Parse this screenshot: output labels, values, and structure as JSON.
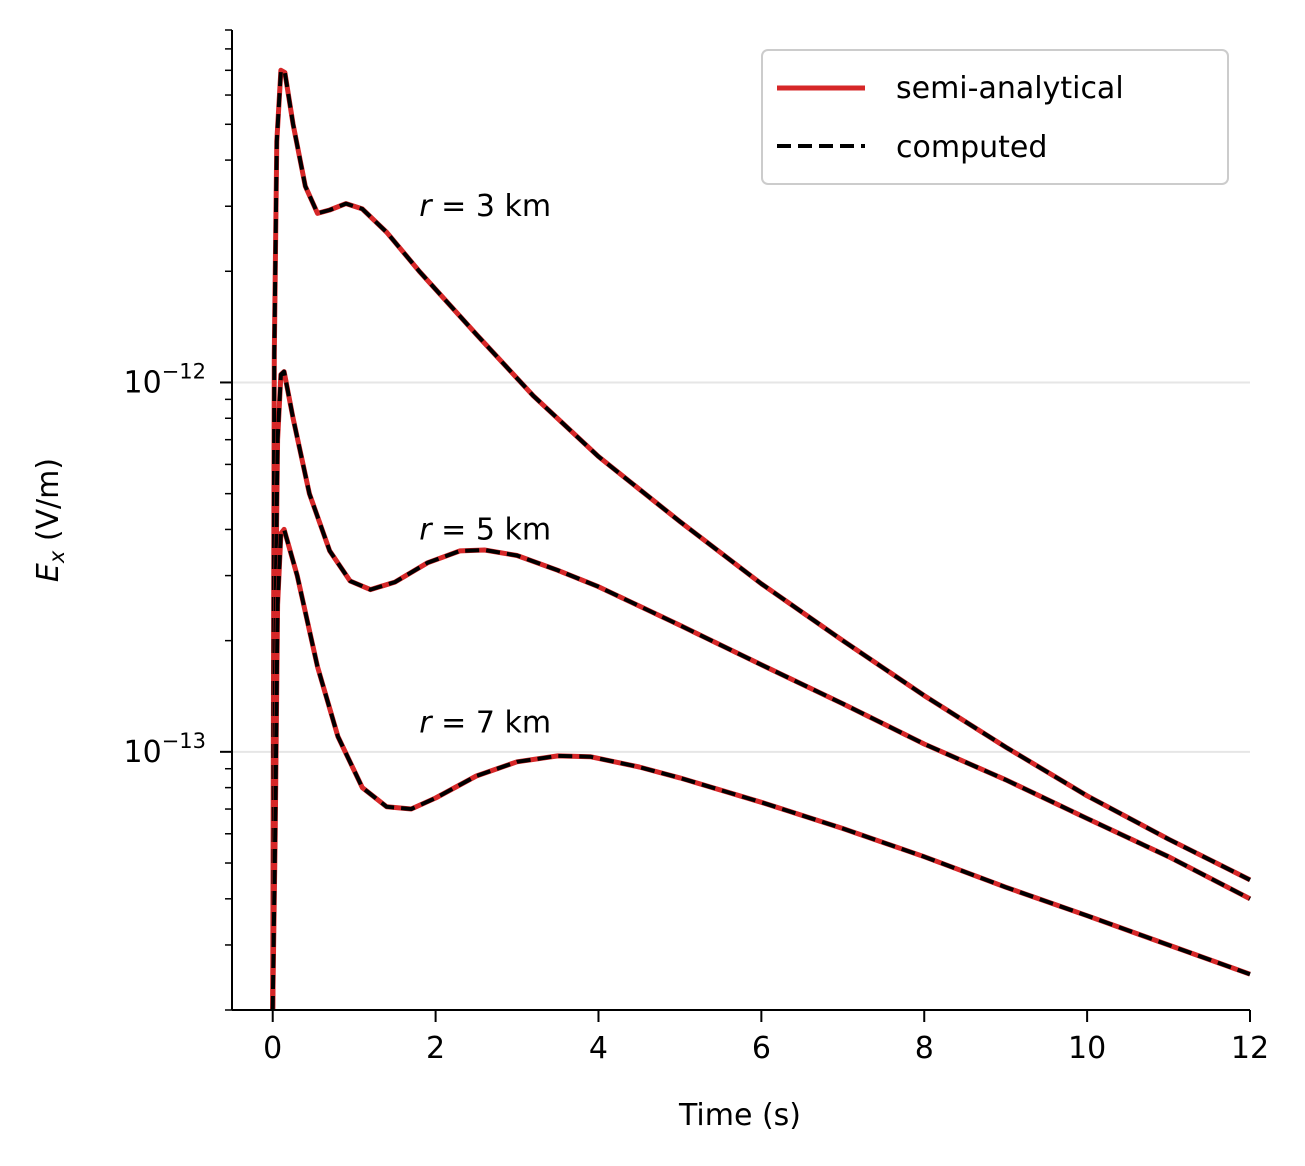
{
  "chart_data": {
    "type": "line",
    "xlabel": "Time (s)",
    "ylabel": "E_x (V/m)",
    "ylabel_main": "E",
    "ylabel_sub": "x",
    "ylabel_unit": " (V/m)",
    "xlim": [
      -0.5,
      12
    ],
    "ylim": [
      2e-14,
      9e-12
    ],
    "yscale": "log",
    "xticks": [
      0,
      2,
      4,
      6,
      8,
      10,
      12
    ],
    "xtick_labels": [
      "0",
      "2",
      "4",
      "6",
      "8",
      "10",
      "12"
    ],
    "yticks_major": [
      {
        "value": 1e-12,
        "base": "10",
        "exp": "−12"
      },
      {
        "value": 1e-13,
        "base": "10",
        "exp": "−13"
      }
    ],
    "grid": "horizontal major lines",
    "legend_position": "top-right",
    "legend": [
      {
        "label": "semi-analytical",
        "style": "solid",
        "color": "#d62728"
      },
      {
        "label": "computed",
        "style": "dashed",
        "color": "#000000"
      }
    ],
    "annotations": [
      {
        "text": "r = 3 km",
        "var": "r",
        "rest": " = 3 km",
        "x": 1.8,
        "y": 3e-12
      },
      {
        "text": "r = 5 km",
        "var": "r",
        "rest": " = 5 km",
        "x": 1.8,
        "y": 4e-13
      },
      {
        "text": "r = 7 km",
        "var": "r",
        "rest": " = 7 km",
        "x": 1.8,
        "y": 1.2e-13
      }
    ],
    "series": [
      {
        "curve": "3 km",
        "points": [
          [
            0.0,
            2e-14
          ],
          [
            0.02,
            1.2e-12
          ],
          [
            0.05,
            4.5e-12
          ],
          [
            0.1,
            7e-12
          ],
          [
            0.15,
            6.9e-12
          ],
          [
            0.25,
            5e-12
          ],
          [
            0.4,
            3.4e-12
          ],
          [
            0.55,
            2.87e-12
          ],
          [
            0.7,
            2.93e-12
          ],
          [
            0.9,
            3.05e-12
          ],
          [
            1.1,
            2.95e-12
          ],
          [
            1.4,
            2.55e-12
          ],
          [
            1.8,
            2e-12
          ],
          [
            2.5,
            1.35e-12
          ],
          [
            3.2,
            9.2e-13
          ],
          [
            4.0,
            6.3e-13
          ],
          [
            5.0,
            4.2e-13
          ],
          [
            6.0,
            2.85e-13
          ],
          [
            7.0,
            2e-13
          ],
          [
            8.0,
            1.42e-13
          ],
          [
            9.0,
            1.03e-13
          ],
          [
            10.0,
            7.6e-14
          ],
          [
            11.0,
            5.8e-14
          ],
          [
            12.0,
            4.5e-14
          ]
        ]
      },
      {
        "curve": "5 km",
        "points": [
          [
            0.0,
            2e-14
          ],
          [
            0.03,
            2e-13
          ],
          [
            0.06,
            7e-13
          ],
          [
            0.1,
            1.05e-12
          ],
          [
            0.14,
            1.07e-12
          ],
          [
            0.25,
            8e-13
          ],
          [
            0.45,
            5e-13
          ],
          [
            0.7,
            3.5e-13
          ],
          [
            0.95,
            2.9e-13
          ],
          [
            1.2,
            2.75e-13
          ],
          [
            1.5,
            2.88e-13
          ],
          [
            1.9,
            3.25e-13
          ],
          [
            2.3,
            3.5e-13
          ],
          [
            2.6,
            3.52e-13
          ],
          [
            3.0,
            3.4e-13
          ],
          [
            3.5,
            3.1e-13
          ],
          [
            4.0,
            2.8e-13
          ],
          [
            5.0,
            2.2e-13
          ],
          [
            6.0,
            1.72e-13
          ],
          [
            7.0,
            1.35e-13
          ],
          [
            8.0,
            1.05e-13
          ],
          [
            9.0,
            8.4e-14
          ],
          [
            10.0,
            6.6e-14
          ],
          [
            11.0,
            5.2e-14
          ],
          [
            12.0,
            4e-14
          ]
        ]
      },
      {
        "curve": "7 km",
        "points": [
          [
            0.0,
            2e-14
          ],
          [
            0.03,
            6e-14
          ],
          [
            0.06,
            2.5e-13
          ],
          [
            0.1,
            3.9e-13
          ],
          [
            0.14,
            4e-13
          ],
          [
            0.3,
            3e-13
          ],
          [
            0.55,
            1.7e-13
          ],
          [
            0.8,
            1.1e-13
          ],
          [
            1.1,
            8e-14
          ],
          [
            1.4,
            7.1e-14
          ],
          [
            1.7,
            7e-14
          ],
          [
            2.0,
            7.5e-14
          ],
          [
            2.5,
            8.6e-14
          ],
          [
            3.0,
            9.4e-14
          ],
          [
            3.5,
            9.75e-14
          ],
          [
            3.9,
            9.7e-14
          ],
          [
            4.5,
            9.1e-14
          ],
          [
            5.0,
            8.5e-14
          ],
          [
            6.0,
            7.3e-14
          ],
          [
            7.0,
            6.2e-14
          ],
          [
            8.0,
            5.2e-14
          ],
          [
            9.0,
            4.3e-14
          ],
          [
            10.0,
            3.6e-14
          ],
          [
            11.0,
            3e-14
          ],
          [
            12.0,
            2.5e-14
          ]
        ]
      }
    ]
  }
}
